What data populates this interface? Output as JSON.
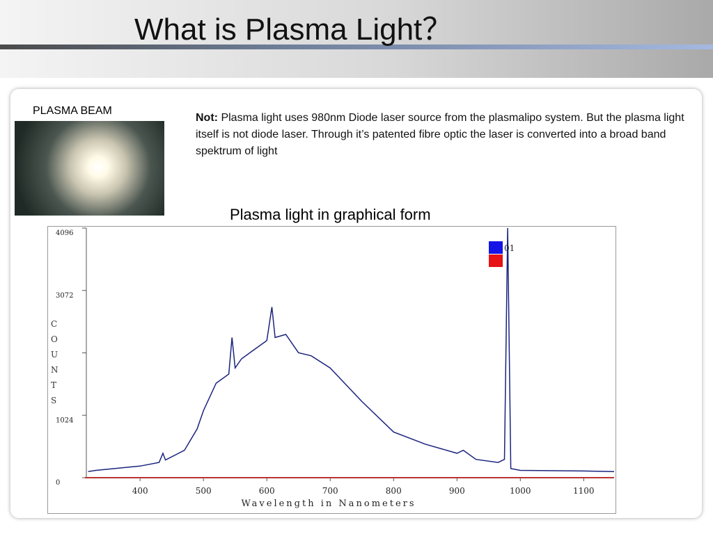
{
  "header": {
    "title": "What is Plasma Light？"
  },
  "photo_label": "PLASMA BEAM",
  "note": {
    "lead": "Not:",
    "text": "Plasma light uses 980nm Diode laser source from the plasmalipo system. But the plasma light itself is not diode laser. Through it’s patented fibre optic the laser is converted into a broad band spektrum of light"
  },
  "caption": "Plasma light in graphical form",
  "chart_data": {
    "type": "line",
    "xlabel": "Wavelength in Nanometers",
    "ylabel": "COUNTS",
    "xlim": [
      313,
      1148
    ],
    "ylim": [
      0,
      4096
    ],
    "xticks": [
      400,
      500,
      600,
      700,
      800,
      900,
      1000,
      1100
    ],
    "yticks": [
      0,
      1024,
      {
        "value": 2048,
        "label": null
      },
      3072,
      4096
    ],
    "series": [
      {
        "name": "01",
        "color": "#1a237e",
        "x": [
          318,
          330,
          400,
          430,
          436,
          440,
          470,
          490,
          500,
          520,
          540,
          545,
          550,
          560,
          580,
          600,
          608,
          613,
          630,
          650,
          670,
          700,
          750,
          800,
          850,
          900,
          910,
          930,
          965,
          975,
          980,
          985,
          1000,
          1100,
          1148
        ],
        "values": [
          100,
          120,
          190,
          250,
          400,
          290,
          450,
          800,
          1100,
          1550,
          1700,
          2300,
          1800,
          1950,
          2100,
          2250,
          2800,
          2300,
          2350,
          2050,
          2000,
          1800,
          1250,
          750,
          550,
          400,
          450,
          300,
          250,
          300,
          4096,
          150,
          120,
          110,
          100
        ]
      }
    ]
  }
}
